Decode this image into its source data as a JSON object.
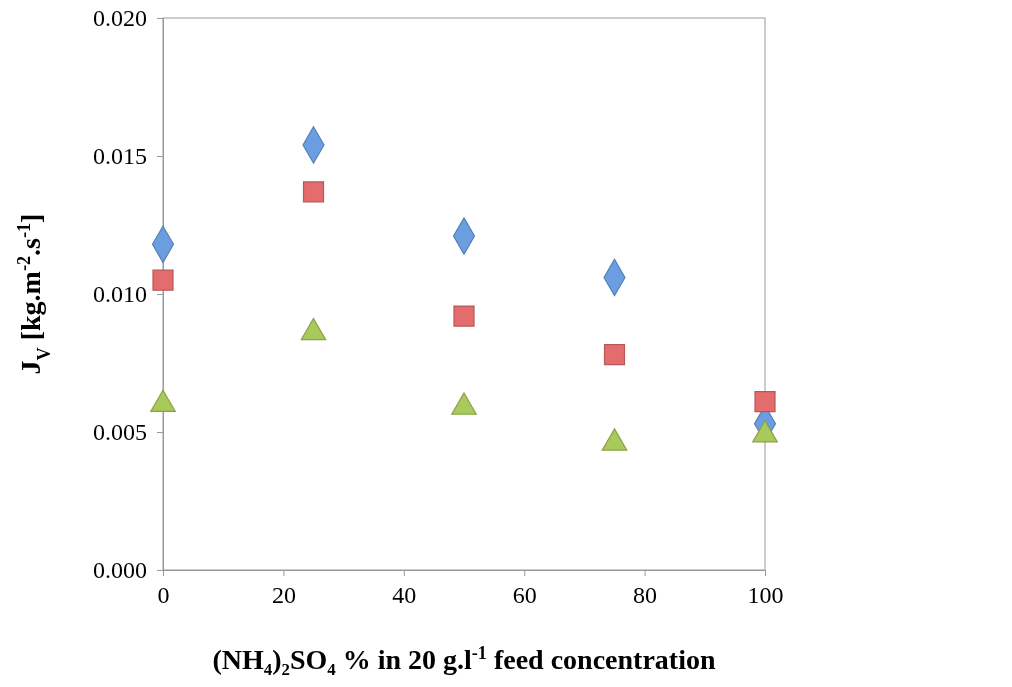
{
  "chart_data": {
    "type": "scatter",
    "xlabel": "(NH₄)₂SO₄ % in 20 g.l$^{-1}$ feed concentration",
    "ylabel": "J$_{V}$ [kg.m$^{-2}$.s$^{-1}$]",
    "x": [
      0,
      25,
      50,
      75,
      100
    ],
    "series": [
      {
        "color": "#6a9ee0",
        "marker": "diamond",
        "values": [
          0.0118,
          0.0154,
          0.0121,
          0.0106,
          0.0053
        ]
      },
      {
        "color": "#e46c6c",
        "marker": "square",
        "values": [
          0.0105,
          0.0137,
          0.0092,
          0.0078,
          0.0061
        ]
      },
      {
        "color": "#a9c95a",
        "marker": "triangle",
        "values": [
          0.006,
          0.0086,
          0.0059,
          0.0046,
          0.0049
        ]
      }
    ],
    "xlim": [
      0,
      100
    ],
    "xticks": [
      0,
      20,
      40,
      60,
      80,
      100
    ],
    "ylim": [
      0,
      0.02
    ],
    "yticks": [
      {
        "value": 0,
        "label": "0.000"
      },
      {
        "value": 0.005,
        "label": "0.005"
      },
      {
        "value": 0.01,
        "label": "0.010"
      },
      {
        "value": 0.015,
        "label": "0.015"
      },
      {
        "value": 0.02,
        "label": "0.020"
      }
    ],
    "grid": false
  }
}
